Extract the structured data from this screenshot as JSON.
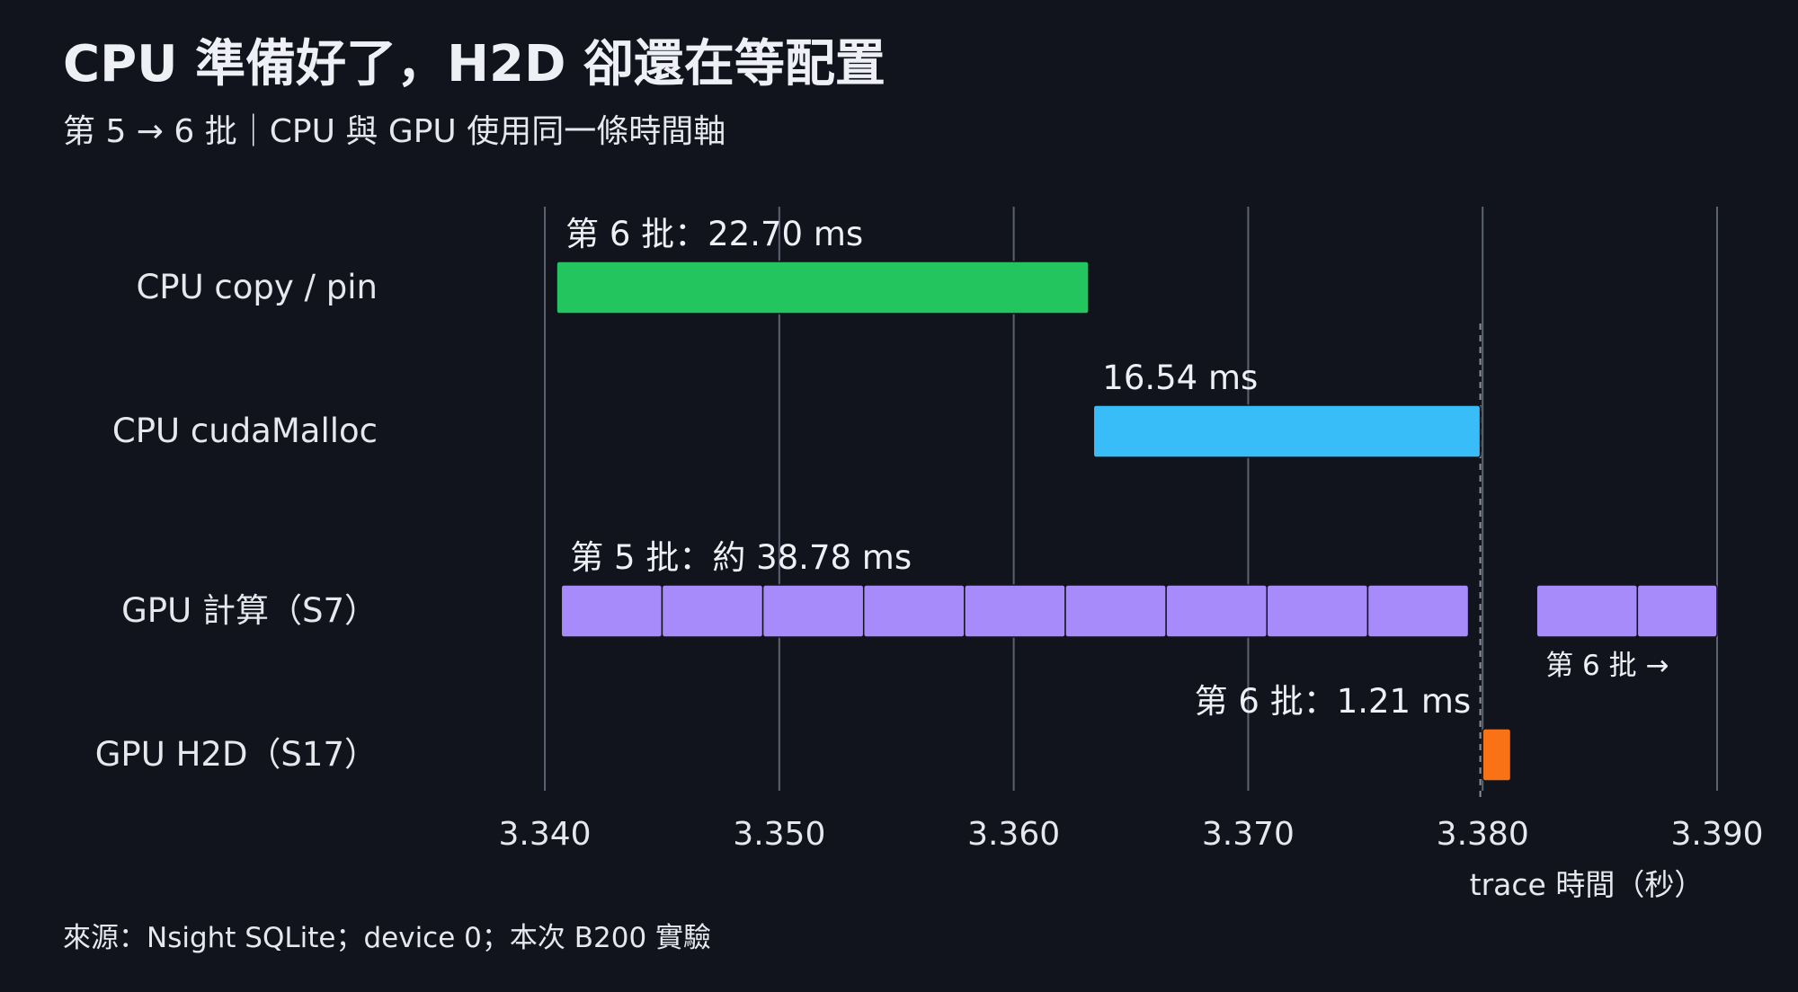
{
  "chart_data": {
    "type": "gantt",
    "title": "CPU 準備好了，H2D 卻還在等配置",
    "subtitle": "第 5 → 6 批｜CPU 與 GPU 使用同一條時間軸",
    "xlabel": "trace 時間（秒）",
    "footnote": "來源：Nsight SQLite；device 0；本次 B200 實驗",
    "xlim": [
      3.3395,
      3.39
    ],
    "xticks": [
      "3.340",
      "3.350",
      "3.360",
      "3.370",
      "3.380",
      "3.390"
    ],
    "tick_values": [
      3.34,
      3.35,
      3.36,
      3.37,
      3.38,
      3.39
    ],
    "marker_x": 3.3799,
    "grid": true,
    "rows": [
      {
        "label": "CPU copy / pin",
        "color": "#22c55e",
        "segments": [
          [
            3.3405,
            3.3632
          ]
        ],
        "annotations": [
          {
            "text": "第 6 批：22.70 ms",
            "x": 3.3405,
            "anchor": "start"
          }
        ]
      },
      {
        "label": "CPU cudaMalloc",
        "color": "#38bdf8",
        "segments": [
          [
            3.3634,
            3.3799
          ]
        ],
        "annotations": [
          {
            "text": "16.54 ms",
            "x": 3.3634,
            "anchor": "start"
          }
        ]
      },
      {
        "label": "GPU 計算（S7）",
        "color": "#a78bfa",
        "segments": [
          [
            3.3407,
            3.345
          ],
          [
            3.345,
            3.3493
          ],
          [
            3.3493,
            3.3536
          ],
          [
            3.3536,
            3.3579
          ],
          [
            3.3579,
            3.3622
          ],
          [
            3.3622,
            3.3665
          ],
          [
            3.3665,
            3.3708
          ],
          [
            3.3708,
            3.3751
          ],
          [
            3.3751,
            3.3794
          ],
          [
            3.3823,
            3.3866
          ],
          [
            3.3866,
            3.39
          ]
        ],
        "annotations": [
          {
            "text": "第 5 批：約 38.78 ms",
            "x": 3.3407,
            "anchor": "start"
          },
          {
            "text": "第 6 批 →",
            "x": 3.3823,
            "anchor": "start",
            "below": true
          }
        ]
      },
      {
        "label": "GPU H2D（S17）",
        "color": "#f97316",
        "segments": [
          [
            3.38,
            3.3812
          ]
        ],
        "annotations": [
          {
            "text": "第 6 批：1.21 ms",
            "x": 3.3795,
            "anchor": "end"
          }
        ]
      }
    ]
  }
}
